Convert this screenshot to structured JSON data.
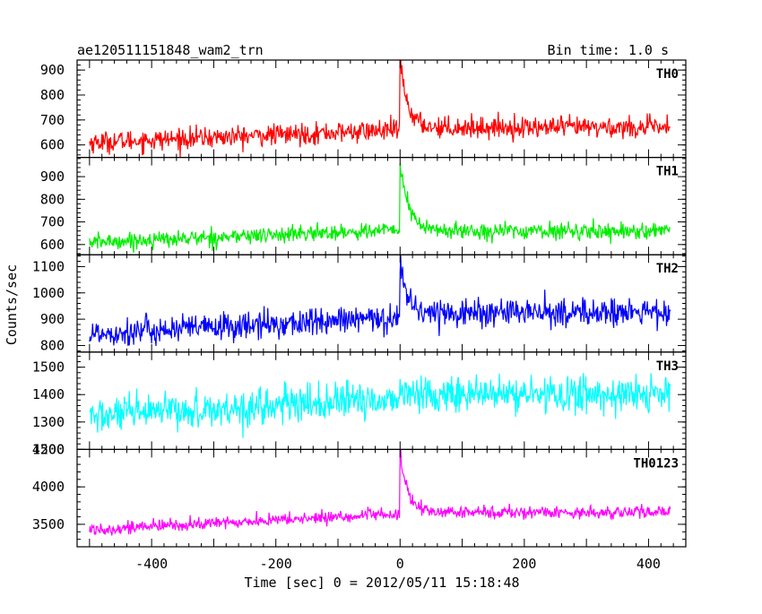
{
  "chart_data": {
    "type": "line",
    "title": "ae120511151848_wam2_trn",
    "bin_time": "Bin time: 1.0 s",
    "xlabel": "Time [sec] 0 = 2012/05/11 15:18:48",
    "ylabel": "Counts/sec",
    "xlim": [
      -520,
      460
    ],
    "x_ticks": [
      -400,
      -200,
      0,
      200,
      400
    ],
    "data_range": [
      -500,
      435
    ],
    "grid": false,
    "legend": "none",
    "series": [
      {
        "name": "TH0",
        "color": "#ff0000",
        "ylim": [
          550,
          940
        ],
        "y_ticks": [
          600,
          700,
          800,
          900
        ],
        "pre_start": 610,
        "pre_end": 660,
        "post_level": 670,
        "peak": 940,
        "noise_amp": 35,
        "decay": 12
      },
      {
        "name": "TH1",
        "color": "#00ee00",
        "ylim": [
          555,
          985
        ],
        "y_ticks": [
          600,
          700,
          800,
          900
        ],
        "pre_start": 610,
        "pre_end": 665,
        "post_level": 660,
        "peak": 960,
        "noise_amp": 30,
        "decay": 14
      },
      {
        "name": "TH2",
        "color": "#0000ff",
        "ylim": [
          775,
          1145
        ],
        "y_ticks": [
          800,
          900,
          1000,
          1100
        ],
        "pre_start": 845,
        "pre_end": 905,
        "post_level": 925,
        "peak": 1140,
        "noise_amp": 45,
        "decay": 10
      },
      {
        "name": "TH3",
        "color": "#00ffff",
        "ylim": [
          1200,
          1555
        ],
        "y_ticks": [
          1200,
          1300,
          1400,
          1500
        ],
        "pre_start": 1320,
        "pre_end": 1385,
        "post_level": 1400,
        "peak": 1420,
        "noise_amp": 55,
        "decay": 8
      },
      {
        "name": "TH0123",
        "color": "#ff00ff",
        "ylim": [
          3200,
          4500
        ],
        "y_ticks": [
          3500,
          4000,
          4500
        ],
        "pre_start": 3430,
        "pre_end": 3640,
        "post_level": 3660,
        "peak": 4450,
        "noise_amp": 70,
        "decay": 12
      }
    ]
  }
}
